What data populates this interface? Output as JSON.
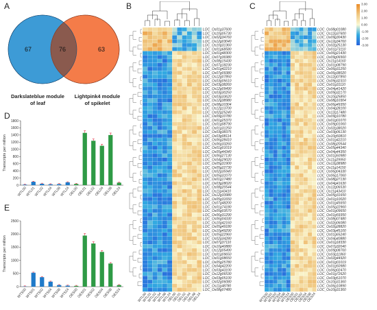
{
  "panels": {
    "a": "A",
    "b": "B",
    "c": "C",
    "d": "D",
    "e": "E"
  },
  "venn": {
    "left_count": "67",
    "overlap_count": "76",
    "right_count": "63",
    "left_label_1": "Darkslateblue module",
    "left_label_2": "of leaf",
    "right_label_1": "Lightpink4 module",
    "right_label_2": "of spikelet",
    "left_color": "#3d9bd6",
    "right_color": "#f47c49",
    "overlap_color": "#8a5a4e"
  },
  "bar_d": {
    "ylabel": "Transcripts per million",
    "ylim": [
      0,
      1800
    ],
    "yticks": [
      "0",
      "200",
      "400",
      "600",
      "800",
      "1000",
      "1200",
      "1400",
      "1600",
      "1800"
    ],
    "categories": [
      "WTL00",
      "WTL01",
      "WTL02",
      "WTL04",
      "WTL08",
      "WTL24",
      "OEL00",
      "OEL01",
      "OEL02",
      "OEL04",
      "OEL08",
      "OEL24"
    ],
    "values": [
      15,
      95,
      40,
      25,
      30,
      80,
      35,
      1460,
      1240,
      1100,
      1400,
      70
    ],
    "colors": [
      "#1f7ac9",
      "#1f7ac9",
      "#1f7ac9",
      "#1f7ac9",
      "#1f7ac9",
      "#1f7ac9",
      "#2e9a45",
      "#2e9a45",
      "#2e9a45",
      "#2e9a45",
      "#2e9a45",
      "#2e9a45"
    ]
  },
  "bar_e": {
    "ylabel": "Transcripts per million",
    "ylim": [
      0,
      2500
    ],
    "yticks": [
      "0",
      "500",
      "1000",
      "1500",
      "2000",
      "2500"
    ],
    "categories": [
      "WTS00",
      "WTS01",
      "WTS02",
      "WTS04",
      "WTS08",
      "WTS24",
      "OES00",
      "OES01",
      "OES02",
      "OES04",
      "OES08",
      "OES24"
    ],
    "values": [
      10,
      530,
      360,
      190,
      60,
      40,
      30,
      1940,
      1640,
      1320,
      880,
      60
    ],
    "colors": [
      "#1f7ac9",
      "#1f7ac9",
      "#1f7ac9",
      "#1f7ac9",
      "#1f7ac9",
      "#1f7ac9",
      "#2e9a45",
      "#2e9a45",
      "#2e9a45",
      "#2e9a45",
      "#2e9a45",
      "#2e9a45"
    ]
  },
  "heat_b": {
    "columns": [
      "WTL00",
      "WTL01",
      "WTL02",
      "WTL04",
      "WTL08",
      "WTL24",
      "OEL00",
      "OEL01",
      "OEL02",
      "OEL04",
      "OEL08",
      "OEL24"
    ],
    "genes": [
      "LOC_Os01g37600",
      "LOC_Os10g05730",
      "LOC_Os02g34760",
      "LOC_Os12g03040",
      "LOC_Os10g31360",
      "LOC_Os01g68580",
      "LOC_Os01g48300",
      "LOC_Os07g36980",
      "LOC_Os08g15430",
      "LOC_Os07g18230",
      "LOC_Os01g42210",
      "LOC_Os07g09380",
      "LOC_Os12g07850",
      "LOC_Os03g05610",
      "LOC_Os03g38260",
      "LOC_Os12g09490",
      "LOC_Os03g30250",
      "LOC_Os03g33620",
      "LOC_Os12g38980",
      "LOC_Os08g10304",
      "LOC_Os12g13700",
      "LOC_Os02g25240",
      "LOC_Os09g10780",
      "LOC_Os01g25370",
      "LOC_Os01g08790",
      "LOC_Os01g31250",
      "LOC_Os03g38375",
      "LOC_Os03g08114",
      "LOC_Os06g28410",
      "LOC_Os06g33260",
      "LOC_Os01g01019",
      "LOC_Os05g44340",
      "LOC_Os06g27130",
      "LOC_Os04g29020",
      "LOC_Os05g31900",
      "LOC_Os05g22730",
      "LOC_Os02g35940",
      "LOC_Os05g31070",
      "LOC_Os01g17480",
      "LOC_Os03g28020",
      "LOC_Os08g20544",
      "LOC_Os11g43410",
      "LOC_Os12g33980",
      "LOC_Os05g31650",
      "LOC_Os07g48200",
      "LOC_Os01g74180",
      "LOC_Os05g03570",
      "LOC_Os06g31290",
      "LOC_Os06g04330",
      "LOC_Os10g42160",
      "LOC_Os05g49180",
      "LOC_Os10g49290",
      "LOC_Os05g22960",
      "LOC_Os02g34280",
      "LOC_Os07g37110",
      "LOC_Os10g40880",
      "LOC_Os12g05490",
      "LOC_Os01g09650",
      "LOC_Os01g08650",
      "LOC_Os05g25780",
      "LOC_Os04g42200",
      "LOC_Os03g43100",
      "LOC_Os12g06530",
      "LOC_Os03g05100",
      "LOC_Os02g06080",
      "LOC_Os11g48780",
      "LOC_Os08g07480"
    ]
  },
  "heat_c": {
    "columns": [
      "WTS00",
      "WTS01",
      "WTS02",
      "WTS04",
      "WTS08",
      "WTS24",
      "OES00",
      "OES01",
      "OES02",
      "OES04",
      "OES08",
      "OES24"
    ],
    "genes": [
      "LOC_Os08g01080",
      "LOC_Os12g37600",
      "LOC_Os09g30430",
      "LOC_Os12g34760",
      "LOC_Os02g25130",
      "LOC_Os01g73110",
      "LOC_Os06g21430",
      "LOC_Os09g06560",
      "LOC_Os11g14160",
      "LOC_Os01g08790",
      "LOC_Os06g31250",
      "LOC_Os06g38020",
      "LOC_Os12g07850",
      "LOC_Os09g32310",
      "LOC_Os01g31110",
      "LOC_Os04g41420",
      "LOC_Os09g32170",
      "LOC_Os10g25850",
      "LOC_Os08g10304",
      "LOC_Os06g49350",
      "LOC_Os04g28100",
      "LOC_Os12g17480",
      "LOC_Os09g10780",
      "LOC_Os01g01070",
      "LOC_Os09g01060",
      "LOC_Os02g38020",
      "LOC_Os03g06130",
      "LOC_Os10g50810",
      "LOC_Os01g42210",
      "LOC_Os08g20544",
      "LOC_Os05g44340",
      "LOC_Os04g44350",
      "LOC_Os01g50980",
      "LOC_Os11g29950",
      "LOC_Os12g38980",
      "LOC_Os11g14150",
      "LOC_Os06g04330",
      "LOC_Os06g17060",
      "LOC_Os08g27130",
      "LOC_Os04g41630",
      "LOC_Os12g06530",
      "LOC_Os11g43410",
      "LOC_Os05g31650",
      "LOC_Os01g10020",
      "LOC_Os01g45650",
      "LOC_Os05g22960",
      "LOC_Os01g09650",
      "LOC_Os01g59350",
      "LOC_Os08g07480",
      "LOC_Os02g06080",
      "LOC_Os02g28820",
      "LOC_Os03g45100",
      "LOC_Os01g65240",
      "LOC_Os04g40880",
      "LOC_Os01g18330",
      "LOC_Os07g32040",
      "LOC_Os09g08760",
      "LOC_Os03g11860",
      "LOC_Os02g44920",
      "LOC_Os01g01019",
      "LOC_Os01g50980",
      "LOC_Os06g02470",
      "LOC_Os01g72620",
      "LOC_Os03g51070",
      "LOC_Os10g31360",
      "LOC_Os06g10890",
      "LOC_Os10g31360"
    ]
  },
  "colorbar": {
    "ticks": [
      "3.00",
      "2.00",
      "1.00",
      "0.00",
      "-1.00",
      "-2.00",
      "-3.00"
    ]
  }
}
